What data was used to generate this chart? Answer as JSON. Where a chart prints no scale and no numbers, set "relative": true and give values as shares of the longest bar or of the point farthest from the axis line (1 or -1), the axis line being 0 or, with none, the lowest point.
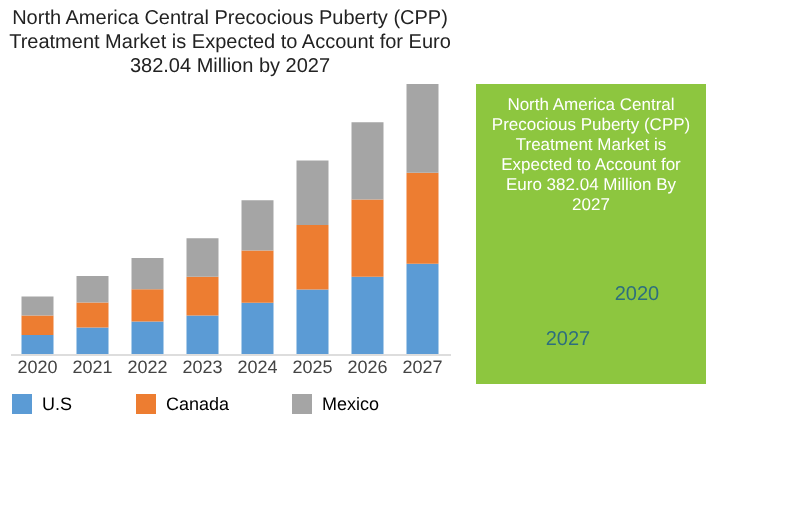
{
  "chart_data": {
    "type": "bar",
    "title": "North America Central Precocious Puberty (CPP) Treatment Market is Expected to Account for Euro 382.04 Million by 2027",
    "categories": [
      "2020",
      "2021",
      "2022",
      "2023",
      "2024",
      "2025",
      "2026",
      "2027"
    ],
    "stacked": true,
    "relative": true,
    "legend": "bottom",
    "grid": false,
    "series": [
      {
        "name": "U.S",
        "color": "#5b9bd5",
        "values": [
          0.07,
          0.098,
          0.12,
          0.143,
          0.19,
          0.239,
          0.286,
          0.334
        ]
      },
      {
        "name": "Canada",
        "color": "#ed7d31",
        "values": [
          0.073,
          0.093,
          0.12,
          0.143,
          0.193,
          0.239,
          0.286,
          0.337
        ]
      },
      {
        "name": "Mexico",
        "color": "#a5a5a5",
        "values": [
          0.07,
          0.098,
          0.116,
          0.143,
          0.186,
          0.239,
          0.286,
          0.329
        ]
      }
    ],
    "annotations": [
      "North America Central Precocious Puberty (CPP) Treatment Market is Expected to Account for Euro 382.04 Million By 2027",
      "2020",
      "2027"
    ]
  }
}
